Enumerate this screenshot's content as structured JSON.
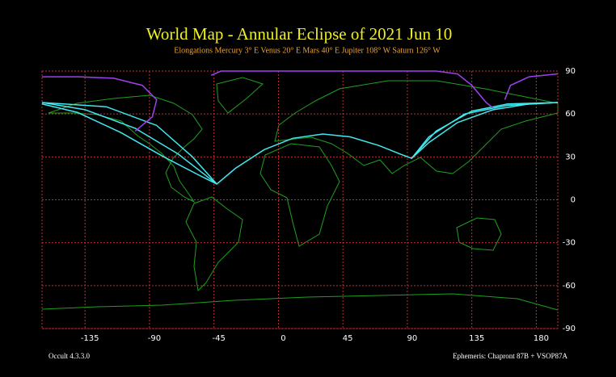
{
  "chart_data": {
    "type": "line",
    "title": "World Map  -  Annular  Eclipse  of  2021 Jun 10",
    "subtitle": "Elongations      Mercury 3° E    Venus 20° E    Mars 40° E    Jupiter 108° W    Saturn 126° W",
    "xlim": [
      -165,
      195
    ],
    "ylim": [
      -90,
      90
    ],
    "xticks": [
      -135,
      -90,
      -45,
      0,
      45,
      90,
      135,
      180
    ],
    "yticks": [
      90,
      60,
      30,
      0,
      -30,
      -60,
      -90
    ],
    "grid": true,
    "series": [
      {
        "color": "#40e8f0",
        "x": [
          -165,
          -140,
          -110,
          -80,
          -55,
          -43,
          -30,
          -10,
          10,
          31,
          50,
          70,
          85,
          93,
          105,
          125,
          150,
          175,
          195
        ],
        "values": [
          67,
          61,
          47,
          30,
          17,
          11,
          22,
          35,
          43,
          46,
          44,
          38,
          32,
          29,
          40,
          54,
          63,
          67,
          68
        ]
      },
      {
        "color": "#40e8f0",
        "x": [
          -165,
          -120,
          -85,
          -60,
          -43
        ],
        "values": [
          68,
          65,
          52,
          30,
          11
        ]
      },
      {
        "color": "#40e8f0",
        "x": [
          -165,
          -135,
          -100,
          -70,
          -43
        ],
        "values": [
          68,
          63,
          50,
          32,
          11
        ]
      },
      {
        "color": "#40e8f0",
        "x": [
          93,
          110,
          135,
          160,
          195
        ],
        "values": [
          29,
          48,
          62,
          67,
          68
        ]
      },
      {
        "color": "#40e8f0",
        "x": [
          93,
          105,
          130,
          160,
          195
        ],
        "values": [
          29,
          44,
          60,
          66,
          68
        ]
      },
      {
        "color": "#a040f0",
        "x": [
          -165,
          -140,
          -115,
          -95,
          -85,
          -88,
          -100
        ],
        "values": [
          86,
          86,
          85,
          80,
          70,
          58,
          48
        ]
      },
      {
        "color": "#a040f0",
        "x": [
          -47,
          -40,
          0,
          50,
          110,
          125,
          135,
          145,
          150
        ],
        "values": [
          87,
          90,
          90,
          90,
          90,
          88,
          80,
          68,
          64
        ]
      },
      {
        "color": "#a040f0",
        "x": [
          158,
          162,
          175,
          195
        ],
        "values": [
          70,
          80,
          86,
          88
        ]
      }
    ],
    "footer_left": "Occult 4.3.3.0",
    "footer_right": "Ephemeris: Chapront 87B + VSOP87A"
  }
}
